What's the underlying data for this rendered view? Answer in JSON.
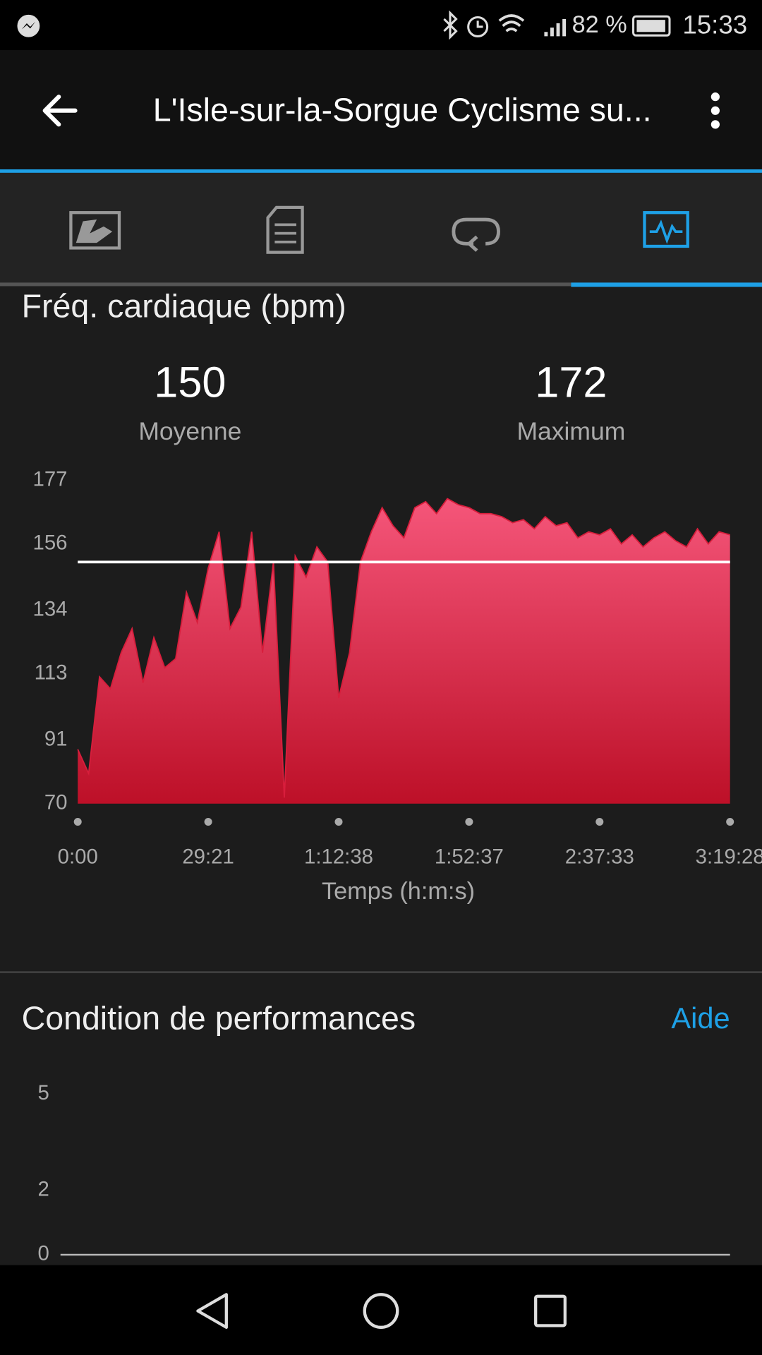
{
  "status_bar": {
    "battery": "82 %",
    "time": "15:33"
  },
  "header": {
    "title": "L'Isle-sur-la-Sorgue Cyclisme su..."
  },
  "chart_data": [
    {
      "type": "area",
      "title": "Fréq. cardiaque (bpm)",
      "stats": [
        {
          "value": 150,
          "label": "Moyenne"
        },
        {
          "value": 172,
          "label": "Maximum"
        }
      ],
      "categories": [
        "0:00",
        null,
        null,
        null,
        null,
        null,
        null,
        null,
        null,
        null,
        null,
        null,
        "29:21",
        null,
        null,
        null,
        null,
        null,
        null,
        null,
        null,
        null,
        null,
        null,
        "1:12:38",
        null,
        null,
        null,
        null,
        null,
        null,
        null,
        null,
        null,
        null,
        null,
        "1:52:37",
        null,
        null,
        null,
        null,
        null,
        null,
        null,
        null,
        null,
        null,
        null,
        "2:37:33",
        null,
        null,
        null,
        null,
        null,
        null,
        null,
        null,
        null,
        null,
        null,
        "3:19:28"
      ],
      "values": [
        88,
        80,
        112,
        108,
        120,
        128,
        110,
        125,
        115,
        118,
        140,
        130,
        148,
        160,
        128,
        135,
        160,
        120,
        150,
        72,
        152,
        145,
        155,
        150,
        105,
        120,
        150,
        160,
        168,
        162,
        158,
        168,
        170,
        166,
        171,
        169,
        168,
        166,
        166,
        165,
        163,
        164,
        161,
        165,
        162,
        163,
        158,
        160,
        159,
        161,
        156,
        159,
        155,
        158,
        160,
        157,
        155,
        161,
        156,
        160,
        159
      ],
      "color": "#d81e3c",
      "xlabel": "Temps (h:m:s)",
      "ylim": [
        70,
        177
      ],
      "yticks": [
        70,
        91,
        113,
        134,
        156,
        177
      ]
    },
    {
      "type": "bar",
      "title": "Condition de performances",
      "link": "Aide",
      "ylim": [
        0,
        5
      ],
      "yticks": [
        5,
        2,
        0
      ]
    }
  ]
}
